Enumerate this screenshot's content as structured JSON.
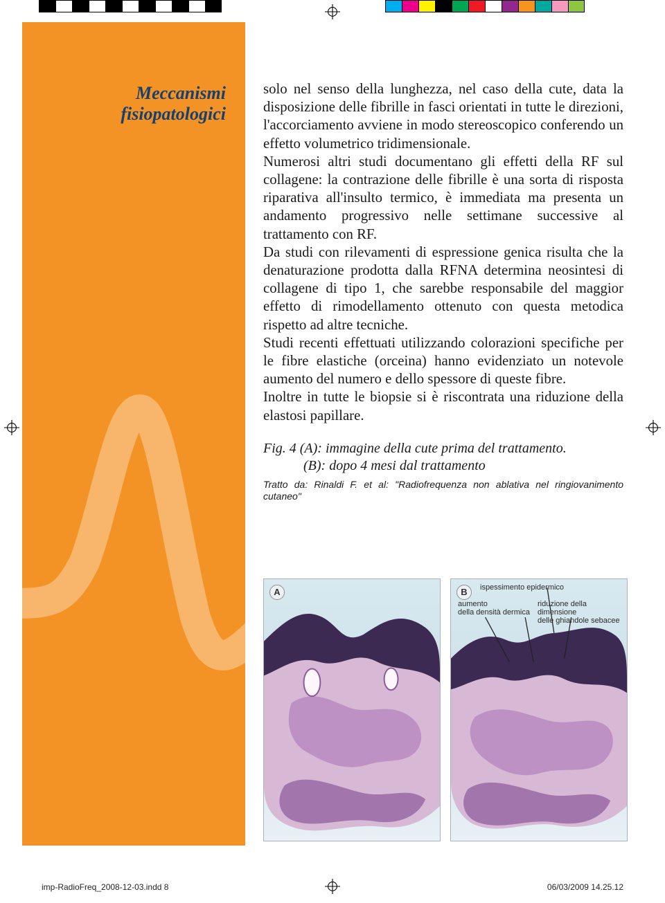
{
  "registration_marks": {
    "positions": [
      "top-center",
      "left-mid",
      "right-mid",
      "bottom-center"
    ],
    "color": "#000000"
  },
  "colorbar_left_swatches": [
    "#000000",
    "#ffffff",
    "#000000",
    "#ffffff",
    "#000000",
    "#ffffff",
    "#000000",
    "#ffffff",
    "#000000",
    "#ffffff",
    "#000000"
  ],
  "colorbar_right_swatches": [
    "#00aeef",
    "#ec008c",
    "#fff200",
    "#000000",
    "#00a651",
    "#ed1c24",
    "#ffffff",
    "#92278f",
    "#f7941d",
    "#00a99d",
    "#f49ac1",
    "#8dc63f"
  ],
  "sidebar": {
    "background": "#f39325",
    "title_line1": "Meccanismi",
    "title_line2": "fisiopatologici",
    "title_color": "#17406f"
  },
  "body": {
    "paragraph": "solo nel senso della lunghezza, nel caso della cute, data la disposizione delle fibrille in fasci orientati in tutte le direzioni, l'accorciamento avviene in modo stereoscopico conferendo un effetto volumetrico tridimensionale.\nNumerosi altri studi documentano gli effetti della RF sul collagene: la contrazione delle fibrille è una sorta di risposta riparativa all'insulto termico, è immediata ma presenta un andamento progressivo nelle settimane successive al trattamento con RF.\nDa studi con rilevamenti di espressione genica risulta che la denaturazione prodotta dalla RFNA determina neosintesi di collagene di tipo 1, che sarebbe responsabile del maggior effetto di rimodellamento ottenuto con questa metodica rispetto ad altre tecniche.\nStudi recenti effettuati utilizzando colorazioni specifiche per le fibre elastiche (orceina) hanno evidenziato un notevole aumento del numero e dello spessore di queste fibre.\nInoltre in tutte le biopsie si è riscontrata una riduzione della elastosi papillare.",
    "fig_caption_a": "Fig. 4  (A): immagine della cute prima del  trattamento.",
    "fig_caption_b": "(B): dopo 4 mesi dal trattamento",
    "tratto": "Tratto da: Rinaldi F. et al: \"Radiofrequenza non ablativa nel ringiovanimento cutaneo\""
  },
  "figures": {
    "panel_a": {
      "label": "A"
    },
    "panel_b": {
      "label": "B",
      "ann_top": "ispessimento epidermico",
      "ann_left1": "aumento",
      "ann_left2": "della densità dermica",
      "ann_right1": "riduzione della dimensione",
      "ann_right2": "delle ghiandole sebacee"
    },
    "tissue_colors": {
      "epidermis": "#3d2a52",
      "dermis_light": "#d7b9d6",
      "dermis_mid": "#b98ac0",
      "dermis_dark": "#8b5a9b",
      "background": "#cfe2ea"
    }
  },
  "footer": {
    "left": "imp-RadioFreq_2008-12-03.indd   8",
    "right": "06/03/2009   14.25.12"
  }
}
